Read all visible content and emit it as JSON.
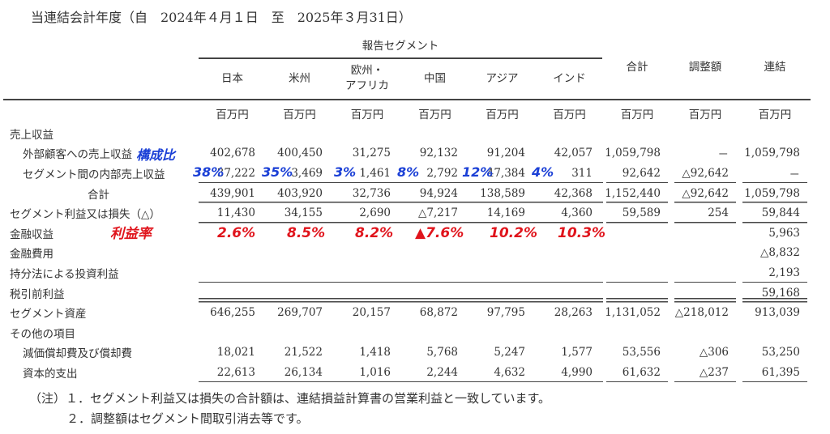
{
  "title": "当連結会計年度（自　2024年４月１日　至　2025年３月31日）",
  "segment_group_label": "報告セグメント",
  "columns": [
    "日本",
    "米州",
    "欧州・\nアフリカ",
    "中国",
    "アジア",
    "インド",
    "合計",
    "調整額",
    "連結"
  ],
  "unit": "百万円",
  "rows": [
    {
      "label": "売上収益",
      "values": [
        "",
        "",
        "",
        "",
        "",
        "",
        "",
        "",
        ""
      ]
    },
    {
      "label": "外部顧客への売上収益",
      "values": [
        "402,678",
        "400,450",
        "31,275",
        "92,132",
        "91,204",
        "42,057",
        "1,059,798",
        "－",
        "1,059,798"
      ]
    },
    {
      "label": "セグメント間の内部売上収益",
      "values": [
        "37,222",
        "3,469",
        "1,461",
        "2,792",
        "47,384",
        "311",
        "92,642",
        "△92,642",
        "－"
      ]
    },
    {
      "label": "合計",
      "values": [
        "439,901",
        "403,920",
        "32,736",
        "94,924",
        "138,589",
        "42,368",
        "1,152,440",
        "△92,642",
        "1,059,798"
      ]
    },
    {
      "label": "セグメント利益又は損失（△）",
      "values": [
        "11,430",
        "34,155",
        "2,690",
        "△7,217",
        "14,169",
        "4,360",
        "59,589",
        "254",
        "59,844"
      ]
    },
    {
      "label": "金融収益",
      "values": [
        "",
        "",
        "",
        "",
        "",
        "",
        "",
        "",
        "5,963"
      ]
    },
    {
      "label": "金融費用",
      "values": [
        "",
        "",
        "",
        "",
        "",
        "",
        "",
        "",
        "△8,832"
      ]
    },
    {
      "label": "持分法による投資利益",
      "values": [
        "",
        "",
        "",
        "",
        "",
        "",
        "",
        "",
        "2,193"
      ]
    },
    {
      "label": "税引前利益",
      "values": [
        "",
        "",
        "",
        "",
        "",
        "",
        "",
        "",
        "59,168"
      ]
    },
    {
      "label": "セグメント資産",
      "values": [
        "646,255",
        "269,707",
        "20,157",
        "68,872",
        "97,795",
        "28,263",
        "1,131,052",
        "△218,012",
        "913,039"
      ]
    },
    {
      "label": "その他の項目",
      "values": [
        "",
        "",
        "",
        "",
        "",
        "",
        "",
        "",
        ""
      ]
    },
    {
      "label": "減価償却費及び償却費",
      "values": [
        "18,021",
        "21,522",
        "1,418",
        "5,768",
        "5,247",
        "1,577",
        "53,556",
        "△306",
        "53,250"
      ]
    },
    {
      "label": "資本的支出",
      "values": [
        "22,613",
        "26,134",
        "1,016",
        "2,244",
        "4,632",
        "4,990",
        "61,632",
        "△237",
        "61,395"
      ]
    }
  ],
  "notes": [
    "（注）１．セグメント利益又は損失の合計額は、連結損益計算書の営業利益と一致しています。",
    "２．調整額はセグメント間取引消去等です。"
  ],
  "annotations": {
    "composition_label": "構成比",
    "composition": [
      "38%",
      "35%",
      "3%",
      "8%",
      "12%",
      "4%"
    ],
    "margin_label": "利益率",
    "margin": [
      "2.6%",
      "8.5%",
      "8.2%",
      "▲7.6%",
      "10.2%",
      "10.3%"
    ],
    "blue": "#1a3fd6",
    "red": "#e0141c"
  }
}
